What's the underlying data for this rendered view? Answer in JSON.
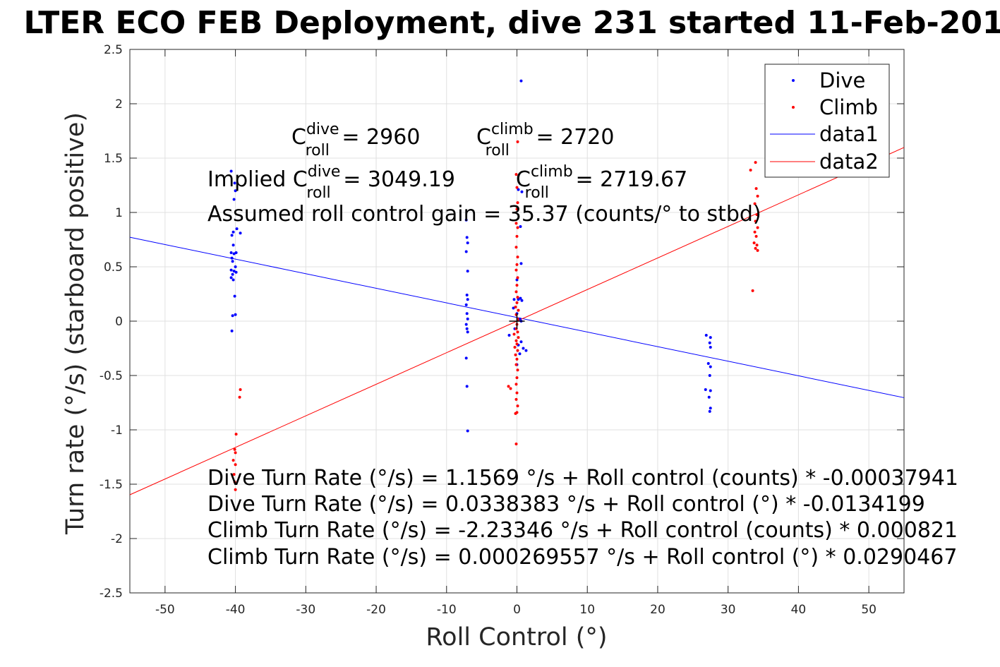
{
  "chart_data": {
    "type": "scatter",
    "title": "LTER ECO FEB Deployment, dive 231 started 11-Feb-201",
    "xlabel": "Roll Control (°)",
    "ylabel": "Turn rate (°/s) (starboard positive)",
    "xlim": [
      -55,
      55
    ],
    "ylim": [
      -2.5,
      2.5
    ],
    "grid": true,
    "legend_placement": "top-right",
    "xticks": [
      -50,
      -40,
      -30,
      -20,
      -10,
      0,
      10,
      20,
      30,
      40,
      50
    ],
    "yticks": [
      2.5,
      2,
      1.5,
      1,
      0.5,
      0,
      -0.5,
      -1,
      -1.5,
      -2,
      -2.5
    ],
    "xtick_labels": [
      "-50",
      "-40",
      "-30",
      "-20",
      "-10",
      "0",
      "10",
      "20",
      "30",
      "40",
      "50"
    ],
    "ytick_labels": [
      "2.5",
      "2",
      "1.5",
      "1",
      "0.5",
      "0",
      "-0.5",
      "-1",
      "-1.5",
      "-2",
      "-2.5"
    ],
    "colors": {
      "dive": "#0000ff",
      "climb": "#ff0000"
    },
    "series": [
      {
        "name": "Dive",
        "kind": "points",
        "color": "#0000ff",
        "points": [
          [
            -40.6,
            1.38
          ],
          [
            -40.1,
            1.27
          ],
          [
            -40.0,
            1.2
          ],
          [
            -40.2,
            1.12
          ],
          [
            -40.3,
            0.82
          ],
          [
            -39.8,
            0.85
          ],
          [
            -39.3,
            0.81
          ],
          [
            -40.5,
            0.79
          ],
          [
            -40.3,
            0.7
          ],
          [
            -40.6,
            0.63
          ],
          [
            -40.2,
            0.62
          ],
          [
            -39.9,
            0.63
          ],
          [
            -40.5,
            0.58
          ],
          [
            -40.4,
            0.55
          ],
          [
            -40.0,
            0.5
          ],
          [
            -40.6,
            0.47
          ],
          [
            -40.2,
            0.46
          ],
          [
            -39.9,
            0.45
          ],
          [
            -40.4,
            0.43
          ],
          [
            -40.6,
            0.4
          ],
          [
            -40.3,
            0.38
          ],
          [
            -40.1,
            0.23
          ],
          [
            -40.4,
            0.05
          ],
          [
            -40.0,
            0.06
          ],
          [
            -40.5,
            -0.09
          ],
          [
            -7.2,
            0.93
          ],
          [
            -7.1,
            0.77
          ],
          [
            -7.0,
            0.72
          ],
          [
            -7.2,
            0.64
          ],
          [
            -7.0,
            0.46
          ],
          [
            -7.1,
            0.24
          ],
          [
            -7.0,
            0.2
          ],
          [
            -7.2,
            0.15
          ],
          [
            -7.1,
            0.07
          ],
          [
            -7.0,
            0.02
          ],
          [
            -7.2,
            -0.03
          ],
          [
            -7.1,
            -0.07
          ],
          [
            -7.0,
            -0.1
          ],
          [
            -7.2,
            -0.34
          ],
          [
            -7.1,
            -0.6
          ],
          [
            -7.0,
            -1.01
          ],
          [
            0.6,
            2.21
          ],
          [
            0.2,
            1.21
          ],
          [
            0.7,
            1.19
          ],
          [
            0.5,
            0.87
          ],
          [
            0.6,
            0.53
          ],
          [
            0.0,
            0.38
          ],
          [
            0.5,
            0.21
          ],
          [
            -0.4,
            0.2
          ],
          [
            0.2,
            0.2
          ],
          [
            0.7,
            0.19
          ],
          [
            -0.5,
            0.12
          ],
          [
            0.0,
            0.07
          ],
          [
            0.4,
            0.02
          ],
          [
            0.6,
            0.0
          ],
          [
            -0.3,
            -0.07
          ],
          [
            -1.1,
            -0.13
          ],
          [
            0.6,
            -0.19
          ],
          [
            0.2,
            -0.22
          ],
          [
            1.3,
            -0.27
          ],
          [
            0.9,
            -0.25
          ],
          [
            0.4,
            -0.3
          ],
          [
            0.0,
            -0.4
          ],
          [
            26.9,
            -0.13
          ],
          [
            27.5,
            -0.15
          ],
          [
            27.4,
            -0.2
          ],
          [
            27.5,
            -0.24
          ],
          [
            27.2,
            -0.39
          ],
          [
            27.5,
            -0.42
          ],
          [
            27.4,
            -0.5
          ],
          [
            26.8,
            -0.63
          ],
          [
            27.5,
            -0.64
          ],
          [
            27.3,
            -0.7
          ],
          [
            27.5,
            -0.8
          ],
          [
            27.4,
            -0.83
          ]
        ]
      },
      {
        "name": "Climb",
        "kind": "points",
        "color": "#ff0000",
        "points": [
          [
            -39.3,
            -0.63
          ],
          [
            -39.4,
            -0.7
          ],
          [
            -39.9,
            -1.04
          ],
          [
            -40.1,
            -1.18
          ],
          [
            -40.0,
            -1.21
          ],
          [
            -40.3,
            -1.28
          ],
          [
            -40.0,
            -1.32
          ],
          [
            -40.2,
            -1.41
          ],
          [
            -40.1,
            -1.48
          ],
          [
            -40.0,
            -1.55
          ],
          [
            0.1,
            1.65
          ],
          [
            -0.1,
            1.35
          ],
          [
            0.0,
            1.23
          ],
          [
            0.1,
            1.09
          ],
          [
            0.0,
            1.03
          ],
          [
            -0.1,
            0.9
          ],
          [
            0.1,
            0.86
          ],
          [
            0.0,
            0.78
          ],
          [
            -0.1,
            0.68
          ],
          [
            0.1,
            0.59
          ],
          [
            0.0,
            0.52
          ],
          [
            -0.1,
            0.47
          ],
          [
            0.1,
            0.4
          ],
          [
            0.0,
            0.33
          ],
          [
            -0.1,
            0.27
          ],
          [
            0.1,
            0.22
          ],
          [
            0.0,
            0.17
          ],
          [
            -0.2,
            0.13
          ],
          [
            0.2,
            0.1
          ],
          [
            -0.1,
            0.06
          ],
          [
            0.1,
            0.02
          ],
          [
            0.0,
            -0.03
          ],
          [
            -0.1,
            -0.07
          ],
          [
            0.1,
            -0.1
          ],
          [
            -0.4,
            -0.12
          ],
          [
            0.2,
            -0.15
          ],
          [
            -0.1,
            -0.18
          ],
          [
            0.0,
            -0.21
          ],
          [
            -0.3,
            -0.24
          ],
          [
            0.1,
            -0.27
          ],
          [
            -0.2,
            -0.31
          ],
          [
            0.0,
            -0.35
          ],
          [
            -0.1,
            -0.4
          ],
          [
            0.1,
            -0.45
          ],
          [
            0.0,
            -0.52
          ],
          [
            -0.1,
            -0.58
          ],
          [
            -1.2,
            -0.6
          ],
          [
            -0.9,
            -0.62
          ],
          [
            0.0,
            -0.66
          ],
          [
            -0.1,
            -0.72
          ],
          [
            0.1,
            -0.78
          ],
          [
            -0.2,
            -0.85
          ],
          [
            0.0,
            -0.84
          ],
          [
            -0.1,
            -1.13
          ],
          [
            33.9,
            1.46
          ],
          [
            33.2,
            1.39
          ],
          [
            34.0,
            1.22
          ],
          [
            34.2,
            1.15
          ],
          [
            33.8,
            1.08
          ],
          [
            34.1,
            0.98
          ],
          [
            33.9,
            0.92
          ],
          [
            34.2,
            0.86
          ],
          [
            33.8,
            0.82
          ],
          [
            34.0,
            0.78
          ],
          [
            33.7,
            0.72
          ],
          [
            34.1,
            0.7
          ],
          [
            33.9,
            0.67
          ],
          [
            34.2,
            0.65
          ],
          [
            33.5,
            0.28
          ]
        ]
      },
      {
        "name": "data1",
        "kind": "line",
        "color": "#0000ff",
        "points": [
          [
            -55,
            0.7719
          ],
          [
            55,
            -0.7041
          ]
        ]
      },
      {
        "name": "data2",
        "kind": "line",
        "color": "#ff0000",
        "points": [
          [
            -55,
            -1.5974
          ],
          [
            55,
            1.5979
          ]
        ]
      }
    ],
    "marker": {
      "x": 0,
      "y": 0,
      "symbol": "+"
    },
    "annotations": {
      "c_dive": {
        "pre": "C",
        "sup": "dive",
        "sub": "roll",
        "post": " = 2960"
      },
      "c_climb": {
        "pre": "C",
        "sup": "climb",
        "sub": "roll",
        "post": " = 2720"
      },
      "implied_dive": {
        "pre": "Implied C",
        "sup": "dive",
        "sub": "roll",
        "post": " = 3049.19"
      },
      "implied_climb": {
        "pre": "C",
        "sup": "climb",
        "sub": "roll",
        "post": " = 2719.67"
      },
      "gain": "Assumed roll control gain = 35.37 (counts/° to stbd)",
      "eq1": "Dive Turn Rate (°/s) = 1.1569 °/s + Roll control (counts) * -0.00037941",
      "eq2": "Dive Turn Rate (°/s) = 0.0338383 °/s + Roll control (°) * -0.0134199",
      "eq3": "Climb Turn Rate (°/s) = -2.23346 °/s + Roll control (counts) * 0.000821",
      "eq4": "Climb Turn Rate (°/s) = 0.000269557 °/s + Roll control (°) * 0.0290467"
    }
  }
}
